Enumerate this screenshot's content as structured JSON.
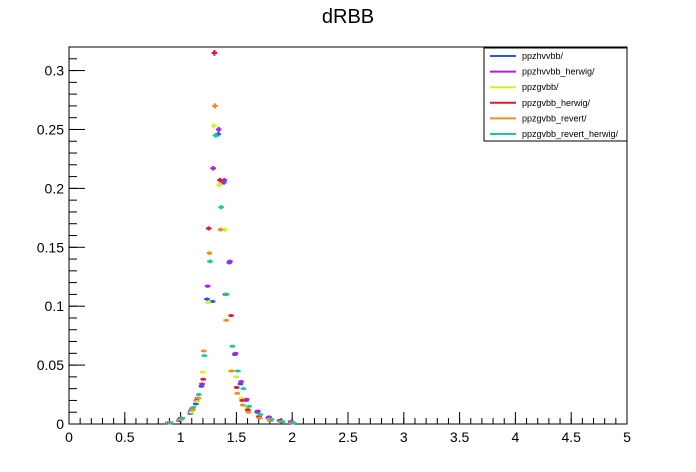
{
  "chart_data": {
    "type": "scatter",
    "title": "dRBB",
    "xlabel": "",
    "ylabel": "",
    "xlim": [
      0,
      5
    ],
    "ylim": [
      0,
      0.32
    ],
    "xticks": [
      0,
      0.5,
      1,
      1.5,
      2,
      2.5,
      3,
      3.5,
      4,
      4.5,
      5
    ],
    "xtick_labels": [
      "0",
      "0.5",
      "1",
      "1.5",
      "2",
      "2.5",
      "3",
      "3.5",
      "4",
      "4.5",
      "5"
    ],
    "yticks": [
      0,
      0.05,
      0.1,
      0.15,
      0.2,
      0.25,
      0.3
    ],
    "ytick_labels": [
      "0",
      "0.05",
      "0.1",
      "0.15",
      "0.2",
      "0.25",
      "0.3"
    ],
    "grid": false,
    "legend_position": "top-right",
    "series": [
      {
        "name": "ppzhvvbb/",
        "color": "#2a55e8",
        "x": [
          0.9,
          1.0,
          1.1,
          1.15,
          1.2,
          1.25,
          1.3,
          1.35,
          1.4,
          1.45,
          1.5,
          1.55,
          1.6,
          1.7,
          1.8,
          1.9,
          2.0
        ],
        "y": [
          0.001,
          0.003,
          0.009,
          0.017,
          0.032,
          0.106,
          0.104,
          0.246,
          0.205,
          0.137,
          0.059,
          0.034,
          0.02,
          0.01,
          0.005,
          0.003,
          0.002
        ]
      },
      {
        "name": "ppzhvvbb_herwig/",
        "color": "#b020d8",
        "x": [
          0.9,
          1.0,
          1.1,
          1.15,
          1.2,
          1.25,
          1.3,
          1.35,
          1.4,
          1.45,
          1.5,
          1.55,
          1.6,
          1.7,
          1.8,
          1.9,
          2.0
        ],
        "y": [
          0.001,
          0.004,
          0.011,
          0.02,
          0.034,
          0.117,
          0.217,
          0.25,
          0.207,
          0.138,
          0.06,
          0.036,
          0.021,
          0.011,
          0.006,
          0.003,
          0.002
        ]
      },
      {
        "name": "ppzgvbb/",
        "color": "#d8f020",
        "x": [
          0.9,
          1.0,
          1.1,
          1.15,
          1.2,
          1.25,
          1.3,
          1.35,
          1.4,
          1.45,
          1.5,
          1.55,
          1.6,
          1.7,
          1.8,
          1.9,
          2.0
        ],
        "y": [
          0.001,
          0.004,
          0.01,
          0.019,
          0.044,
          0.103,
          0.253,
          0.203,
          0.165,
          0.045,
          0.04,
          0.022,
          0.014,
          0.007,
          0.004,
          0.002,
          0.001
        ]
      },
      {
        "name": "ppzgvbb_herwig/",
        "color": "#e01838",
        "x": [
          0.9,
          1.0,
          1.1,
          1.15,
          1.2,
          1.25,
          1.3,
          1.35,
          1.4,
          1.45,
          1.5,
          1.55,
          1.6,
          1.7,
          1.8,
          1.9,
          2.0
        ],
        "y": [
          0.001,
          0.005,
          0.013,
          0.022,
          0.038,
          0.166,
          0.315,
          0.207,
          0.11,
          0.092,
          0.031,
          0.02,
          0.012,
          0.006,
          0.003,
          0.002,
          0.001
        ]
      },
      {
        "name": "ppzgvbb_revert/",
        "color": "#f09018",
        "x": [
          0.9,
          1.0,
          1.1,
          1.15,
          1.2,
          1.25,
          1.3,
          1.35,
          1.4,
          1.45,
          1.5,
          1.55,
          1.6,
          1.7,
          1.8,
          1.9,
          2.0
        ],
        "y": [
          0.001,
          0.004,
          0.012,
          0.022,
          0.062,
          0.145,
          0.27,
          0.165,
          0.088,
          0.045,
          0.026,
          0.016,
          0.01,
          0.005,
          0.003,
          0.002,
          0.001
        ]
      },
      {
        "name": "ppzgvbb_revert_herwig/",
        "color": "#18c8a0",
        "x": [
          0.9,
          1.0,
          1.1,
          1.15,
          1.2,
          1.25,
          1.3,
          1.35,
          1.4,
          1.45,
          1.5,
          1.55,
          1.6,
          1.7,
          1.8,
          1.9,
          2.0
        ],
        "y": [
          0.001,
          0.005,
          0.014,
          0.025,
          0.058,
          0.138,
          0.245,
          0.184,
          0.11,
          0.066,
          0.045,
          0.03,
          0.015,
          0.008,
          0.004,
          0.002,
          0.001
        ]
      }
    ]
  }
}
